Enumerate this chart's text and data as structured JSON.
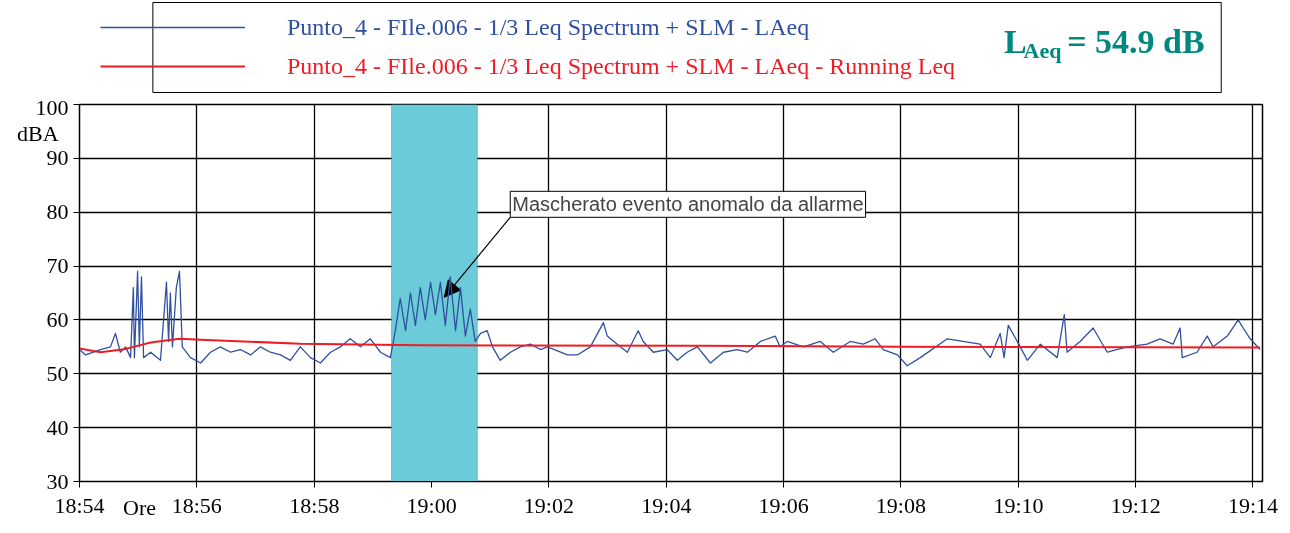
{
  "chart_data": {
    "type": "line",
    "xlabel": "Ore",
    "ylabel": "dBA",
    "xlim": [
      18.9,
      19.236
    ],
    "ylim": [
      30,
      100
    ],
    "xticks": [
      {
        "value": 18.9,
        "label": "18:54"
      },
      {
        "value": 18.9333,
        "label": "18:56"
      },
      {
        "value": 18.9667,
        "label": "18:58"
      },
      {
        "value": 19.0,
        "label": "19:00"
      },
      {
        "value": 19.0333,
        "label": "19:02"
      },
      {
        "value": 19.0667,
        "label": "19:04"
      },
      {
        "value": 19.1,
        "label": "19:06"
      },
      {
        "value": 19.1333,
        "label": "19:08"
      },
      {
        "value": 19.1667,
        "label": "19:10"
      },
      {
        "value": 19.2,
        "label": "19:12"
      },
      {
        "value": 19.2333,
        "label": "19:14"
      }
    ],
    "yticks": [
      30,
      40,
      50,
      60,
      70,
      80,
      90,
      100
    ],
    "grid": true,
    "legend": "top",
    "marker": "none",
    "line_style": "solid",
    "series": [
      {
        "name": "Punto_4 - FIle.006 - 1/3 Leq Spectrum + SLM - LAeq",
        "color": "#3050a0",
        "x": [
          18.9,
          18.9017,
          18.906,
          18.9088,
          18.9102,
          18.9116,
          18.9131,
          18.9145,
          18.9153,
          18.9156,
          18.9165,
          18.917,
          18.9176,
          18.9182,
          18.9202,
          18.923,
          18.9247,
          18.9253,
          18.9258,
          18.9264,
          18.9275,
          18.9284,
          18.9292,
          18.9315,
          18.9344,
          18.9372,
          18.94,
          18.9429,
          18.9457,
          18.9486,
          18.9514,
          18.9542,
          18.9571,
          18.9599,
          18.9627,
          18.9656,
          18.9684,
          18.9713,
          18.9741,
          18.9769,
          18.9798,
          18.9826,
          18.9855,
          18.9883,
          18.9897,
          18.9911,
          18.9926,
          18.994,
          18.9954,
          18.9968,
          18.9982,
          18.9997,
          19.0011,
          19.0025,
          19.0039,
          19.0053,
          19.0068,
          19.0082,
          19.0096,
          19.011,
          19.0124,
          19.0139,
          19.0158,
          19.0173,
          19.0195,
          19.0224,
          19.0252,
          19.0281,
          19.0309,
          19.0329,
          19.0386,
          19.0414,
          19.0451,
          19.0488,
          19.0499,
          19.0536,
          19.0556,
          19.0587,
          19.0601,
          19.063,
          19.0669,
          19.0698,
          19.0726,
          19.0755,
          19.0792,
          19.0829,
          19.0868,
          19.0897,
          19.0934,
          19.0976,
          19.099,
          19.101,
          19.1056,
          19.1104,
          19.1141,
          19.1189,
          19.1226,
          19.126,
          19.1283,
          19.1323,
          19.1351,
          19.1388,
          19.1465,
          19.1558,
          19.1587,
          19.1615,
          19.1626,
          19.1638,
          19.1672,
          19.1692,
          19.1729,
          19.1777,
          19.1797,
          19.1805,
          19.1842,
          19.1879,
          19.1919,
          19.1976,
          19.2032,
          19.2069,
          19.2106,
          19.2126,
          19.2132,
          19.2174,
          19.2203,
          19.222,
          19.226,
          19.2291,
          19.2305,
          19.2325,
          19.2353
        ],
        "values": [
          54.5,
          53.5,
          54.5,
          55,
          57.5,
          54,
          55,
          53,
          66,
          53,
          69,
          55,
          68,
          53,
          54,
          52.5,
          67,
          56,
          65,
          55,
          66,
          69,
          55,
          53,
          52,
          54,
          55,
          54,
          54.5,
          53.5,
          55,
          54,
          53.5,
          52.5,
          55,
          53,
          52,
          54,
          55,
          56.5,
          55,
          56.5,
          54,
          53,
          58,
          64,
          58,
          65,
          59,
          66,
          60,
          67,
          61,
          67,
          59,
          68,
          58,
          66,
          57,
          62,
          56,
          57.5,
          58,
          55,
          52.5,
          54,
          55,
          55.5,
          54.5,
          55,
          53.5,
          53.5,
          55,
          59.5,
          57,
          55,
          54,
          58,
          56,
          54,
          54.5,
          52.5,
          54,
          55,
          52,
          54,
          54.5,
          54,
          56,
          57,
          55,
          56,
          55,
          56,
          54,
          56,
          55.5,
          56.5,
          54.5,
          53.5,
          51.5,
          53,
          56.5,
          55.5,
          53,
          57.5,
          53,
          59,
          55,
          52.5,
          55.5,
          53,
          61,
          54,
          56,
          58.5,
          54,
          55,
          55.5,
          56.5,
          55.5,
          58.5,
          53,
          54,
          57,
          55,
          57,
          60,
          58.5,
          56.5,
          54.5
        ]
      },
      {
        "name": "Punto_4 - FIle.006 - 1/3 Leq Spectrum + SLM - LAeq - Running Leq",
        "color": "#ee1c25",
        "x": [
          18.9,
          18.906,
          18.9131,
          18.9153,
          18.9202,
          18.9284,
          18.9344,
          18.9627,
          18.9968,
          19.0764,
          19.1331,
          19.2353
        ],
        "values": [
          54.7,
          54.0,
          54.6,
          55.0,
          55.8,
          56.5,
          56.3,
          55.6,
          55.3,
          55.2,
          55.0,
          54.9
        ]
      }
    ],
    "bands": [
      {
        "axis": "x",
        "from": 18.9886,
        "to": 19.013,
        "label": null,
        "color": "#6ccbd8"
      }
    ],
    "annotations": [
      "L$_{Aeq}$ = 54.9 dB",
      {
        "text": "Mascherato evento anomalo da allarme",
        "x": 19.0036,
        "y": 64.2
      }
    ]
  }
}
